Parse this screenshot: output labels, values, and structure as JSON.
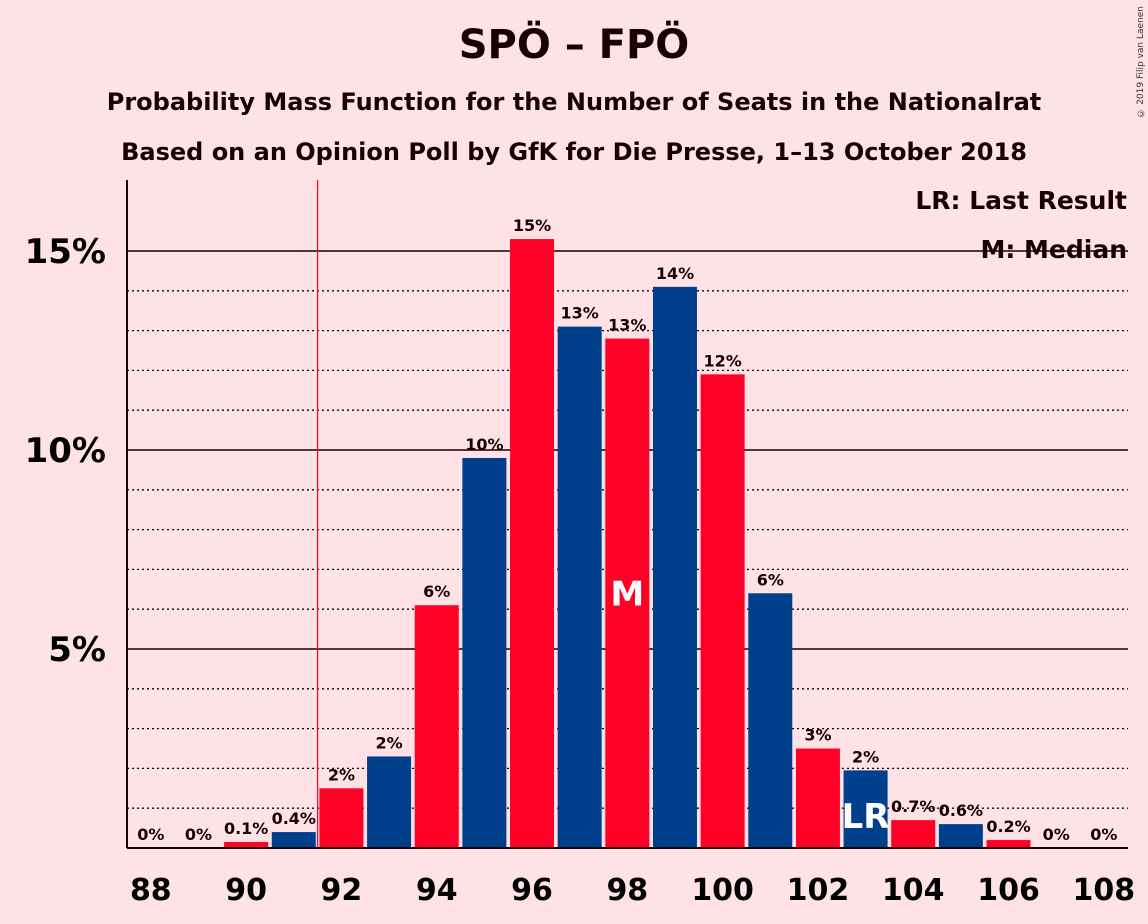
{
  "title": "SPÖ – FPÖ",
  "subtitle_1": "Probability Mass Function for the Number of Seats in the Nationalrat",
  "subtitle_2": "Based on an Opinion Poll by GfK for Die Presse, 1–13 October 2018",
  "copyright": "© 2019 Filip van Laenen",
  "legend": {
    "last_result": "LR: Last Result",
    "median": "M: Median"
  },
  "colors": {
    "background": "#ffe2e5",
    "red": "#ff0026",
    "blue": "#003f8c",
    "last_result_line": "#ff0026"
  },
  "chart_data": {
    "type": "bar",
    "x": [
      88,
      89,
      90,
      91,
      92,
      93,
      94,
      95,
      96,
      97,
      98,
      99,
      100,
      101,
      102,
      103,
      104,
      105,
      106,
      107,
      108
    ],
    "values": [
      0,
      0,
      0.15,
      0.4,
      1.5,
      2.3,
      6.1,
      9.8,
      15.3,
      13.1,
      12.8,
      14.1,
      11.9,
      6.4,
      2.5,
      1.95,
      0.7,
      0.6,
      0.2,
      0,
      0
    ],
    "labels": [
      "0%",
      "0%",
      "0.1%",
      "0.4%",
      "2%",
      "2%",
      "6%",
      "10%",
      "15%",
      "13%",
      "13%",
      "14%",
      "12%",
      "6%",
      "3%",
      "2%",
      "0.7%",
      "0.6%",
      "0.2%",
      "0%",
      "0%"
    ],
    "bar_colors": [
      "#ff0026",
      "#003f8c",
      "#ff0026",
      "#003f8c",
      "#ff0026",
      "#003f8c",
      "#ff0026",
      "#003f8c",
      "#ff0026",
      "#003f8c",
      "#ff0026",
      "#003f8c",
      "#ff0026",
      "#003f8c",
      "#ff0026",
      "#003f8c",
      "#ff0026",
      "#003f8c",
      "#ff0026",
      "#003f8c",
      "#ff0026"
    ],
    "x_tick_labels": [
      "88",
      "90",
      "92",
      "94",
      "96",
      "98",
      "100",
      "102",
      "104",
      "106",
      "108"
    ],
    "y_tick_labels": [
      "5%",
      "10%",
      "15%"
    ],
    "y_ticks": [
      5,
      10,
      15
    ],
    "ylim": [
      0,
      16.8
    ],
    "minor_gridlines": [
      1,
      2,
      3,
      4,
      6,
      7,
      8,
      9,
      11,
      12,
      13,
      14
    ],
    "median_seat": 98,
    "median_marker": "M",
    "last_result_seat": 103,
    "last_result_marker": "LR",
    "majority_line_x": 91.5,
    "legend_position": "top-right"
  }
}
